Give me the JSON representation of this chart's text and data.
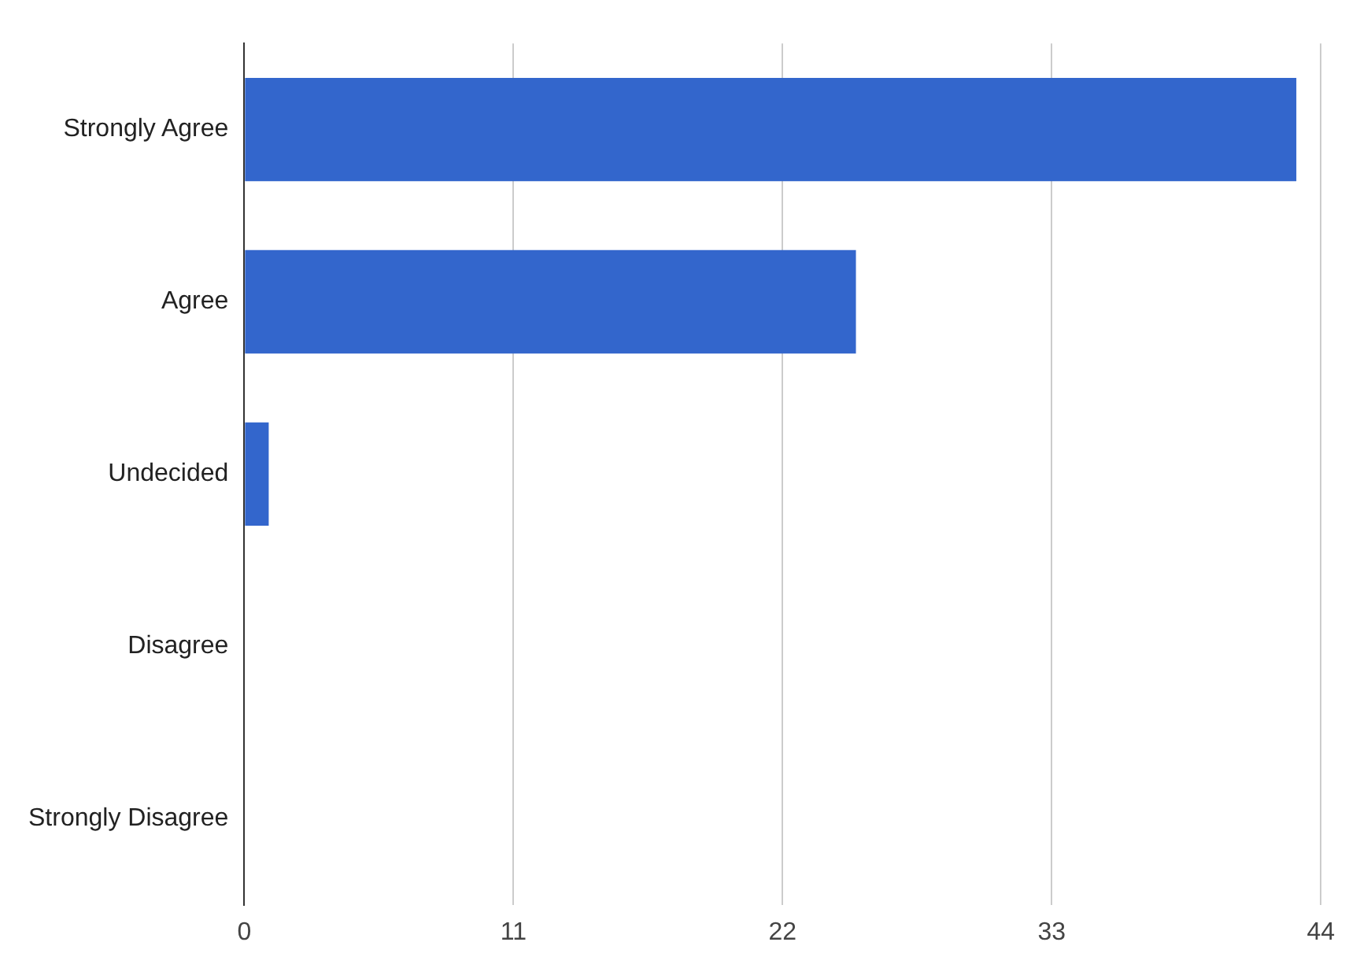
{
  "chart_data": {
    "type": "bar",
    "orientation": "horizontal",
    "categories": [
      "Strongly Agree",
      "Agree",
      "Undecided",
      "Disagree",
      "Strongly Disagree"
    ],
    "values": [
      43,
      25,
      1,
      0,
      0
    ],
    "color": "#3366cc",
    "xlim": [
      0,
      44
    ],
    "xticks": [
      0,
      11,
      22,
      33,
      44
    ],
    "grid": "x"
  }
}
